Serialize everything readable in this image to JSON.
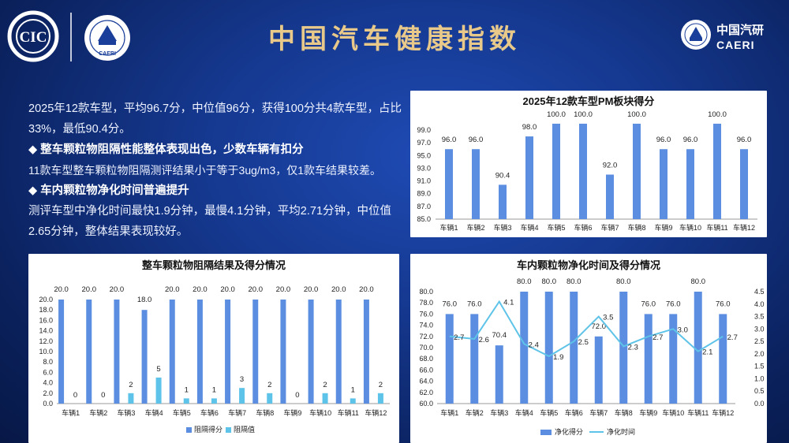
{
  "header": {
    "title": "中国汽车健康指数",
    "logo_left_text": "CIC",
    "logo_center_text": "CAERI",
    "logo_right_cn": "中国汽研",
    "logo_right_en": "CAERI"
  },
  "summary": {
    "line1": "2025年12款车型，平均96.7分，中位值96分，获得100分共4款车型，占比33%，最低90.4分。",
    "bullet1": "◆ 整车颗粒物阻隔性能整体表现出色，少数车辆有扣分",
    "text1": "11款车型整车颗粒物阻隔测评结果小于等于3ug/m3，仅1款车结果较差。",
    "bullet2": "◆ 车内颗粒物净化时间普遍提升",
    "text2": "测评车型中净化时间最快1.9分钟，最慢4.1分钟，平均2.71分钟，中位值2.65分钟，整体结果表现较好。"
  },
  "colors": {
    "bar": "#5b8ee0",
    "bar2": "#5ec3e8",
    "line": "#5ec3e8",
    "title_gold": "#e8c98a"
  },
  "chart_data": [
    {
      "type": "bar",
      "title": "2025年12款车型PM板块得分",
      "categories": [
        "车辆1",
        "车辆2",
        "车辆3",
        "车辆4",
        "车辆5",
        "车辆6",
        "车辆7",
        "车辆8",
        "车辆9",
        "车辆10",
        "车辆11",
        "车辆12"
      ],
      "values": [
        96.0,
        96.0,
        90.4,
        98.0,
        100.0,
        100.0,
        92.0,
        100.0,
        96.0,
        96.0,
        100.0,
        96.0
      ],
      "ylim": [
        85.0,
        99.0
      ],
      "yticks": [
        "85.0",
        "87.0",
        "89.0",
        "91.0",
        "93.0",
        "95.0",
        "97.0",
        "99.0"
      ]
    },
    {
      "type": "bar",
      "title": "整车颗粒物阻隔结果及得分情况",
      "categories": [
        "车辆1",
        "车辆2",
        "车辆3",
        "车辆4",
        "车辆5",
        "车辆6",
        "车辆7",
        "车辆8",
        "车辆9",
        "车辆10",
        "车辆11",
        "车辆12"
      ],
      "series": [
        {
          "name": "阻隔得分",
          "values": [
            20.0,
            20.0,
            20.0,
            18.0,
            20.0,
            20.0,
            20.0,
            20.0,
            20.0,
            20.0,
            20.0,
            20.0
          ],
          "labels": [
            "20.0",
            "20.0",
            "20.0",
            "18.0",
            "20.0",
            "20.0",
            "20.0",
            "20.0",
            "20.0",
            "20.0",
            "20.0",
            "20.0"
          ]
        },
        {
          "name": "阻隔值",
          "values": [
            0,
            0,
            2,
            5,
            1,
            1,
            3,
            2,
            0,
            2,
            1,
            2
          ],
          "labels": [
            "0",
            "0",
            "2",
            "5",
            "1",
            "1",
            "3",
            "2",
            "0",
            "2",
            "1",
            "2"
          ]
        }
      ],
      "ylim": [
        0.0,
        20.0
      ],
      "yticks": [
        "0.0",
        "2.0",
        "4.0",
        "6.0",
        "8.0",
        "10.0",
        "12.0",
        "14.0",
        "16.0",
        "18.0",
        "20.0"
      ]
    },
    {
      "type": "bar",
      "title": "车内颗粒物净化时间及得分情况",
      "categories": [
        "车辆1",
        "车辆2",
        "车辆3",
        "车辆4",
        "车辆5",
        "车辆6",
        "车辆7",
        "车辆8",
        "车辆9",
        "车辆10",
        "车辆11",
        "车辆12"
      ],
      "series": [
        {
          "name": "净化得分",
          "values": [
            76.0,
            76.0,
            70.4,
            80.0,
            80.0,
            80.0,
            72.0,
            80.0,
            76.0,
            76.0,
            80.0,
            76.0
          ],
          "labels": [
            "76.0",
            "76.0",
            "70.4",
            "80.0",
            "80.0",
            "80.0",
            "72.0",
            "80.0",
            "76.0",
            "76.0",
            "80.0",
            "76.0"
          ]
        },
        {
          "name": "净化时间",
          "values": [
            2.7,
            2.6,
            4.1,
            2.4,
            1.9,
            2.5,
            3.5,
            2.3,
            2.7,
            3.0,
            2.1,
            2.7
          ],
          "labels": [
            "2.7",
            "2.6",
            "4.1",
            "2.4",
            "1.9",
            "2.5",
            "3.5",
            "2.3",
            "2.7",
            "3.0",
            "2.1",
            "2.7"
          ]
        }
      ],
      "ylim": [
        60.0,
        80.0
      ],
      "yticks": [
        "60.0",
        "62.0",
        "64.0",
        "66.0",
        "68.0",
        "70.0",
        "72.0",
        "74.0",
        "76.0",
        "78.0",
        "80.0"
      ],
      "y2lim": [
        0.0,
        4.5
      ],
      "y2ticks": [
        "0.0",
        "0.5",
        "1.0",
        "1.5",
        "2.0",
        "2.5",
        "3.0",
        "3.5",
        "4.0",
        "4.5"
      ]
    }
  ]
}
